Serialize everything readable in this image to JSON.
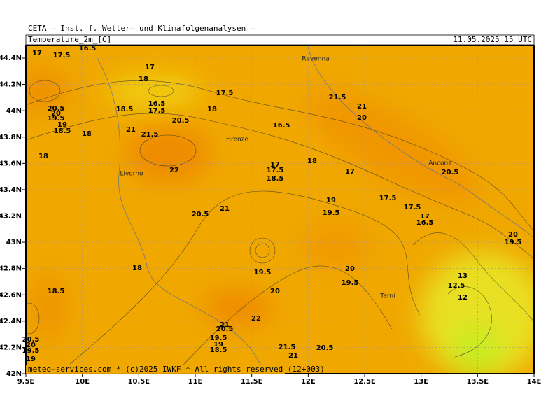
{
  "header": {
    "title": "CETA — Inst. f. Wetter— und Klimafolgenanalysen —",
    "field": "Temperature_2m_[C]",
    "timestamp": "11.05.2025 15 UTC"
  },
  "axes": {
    "x_ticks": [
      "9.5E",
      "10E",
      "10.5E",
      "11E",
      "11.5E",
      "12E",
      "12.5E",
      "13E",
      "13.5E",
      "14E"
    ],
    "y_ticks": [
      "44.4N",
      "44.2N",
      "44N",
      "43.8N",
      "43.6N",
      "43.4N",
      "43.2N",
      "43N",
      "42.8N",
      "42.6N",
      "42.4N",
      "42.2N",
      "42N"
    ]
  },
  "cities": [
    "Ravenna",
    "Firenze",
    "Ancona",
    "Livorno",
    "Terni"
  ],
  "contour_labels": [
    "17",
    "17.5",
    "16.5",
    "17",
    "18",
    "17.5",
    "21.5",
    "21",
    "20",
    "20.5",
    "20",
    "19.5",
    "19",
    "18.5",
    "18",
    "18.5",
    "16.5",
    "17.5",
    "18",
    "20.5",
    "21",
    "21.5",
    "16.5",
    "18",
    "17",
    "17.5",
    "18.5",
    "18",
    "17",
    "20.5",
    "22",
    "17.5",
    "19",
    "19.5",
    "17.5",
    "17",
    "16.5",
    "20.5",
    "21",
    "20",
    "19.5",
    "18",
    "19.5",
    "20",
    "19.5",
    "18.5",
    "20",
    "13",
    "12.5",
    "12",
    "22",
    "21",
    "20.5",
    "19.5",
    "19",
    "18.5",
    "21.5",
    "20.5",
    "21",
    "20.5",
    "20",
    "19.5",
    "19"
  ],
  "footer": "meteo-services.com * (c)2025 IWKF * All rights reserved (12+003)"
}
